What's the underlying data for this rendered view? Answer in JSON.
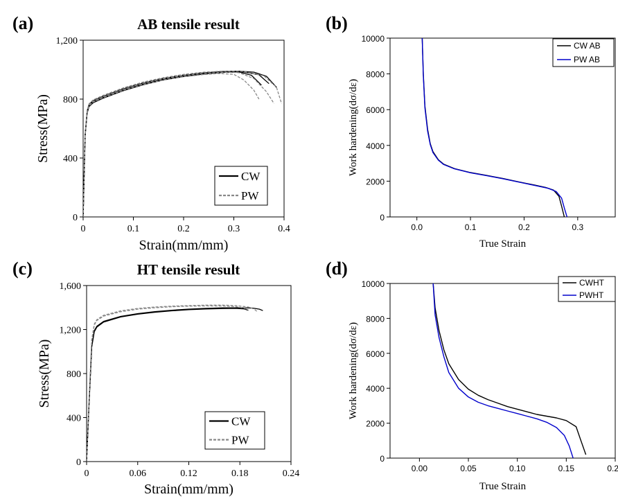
{
  "panel_labels": [
    "(a)",
    "(b)",
    "(c)",
    "(d)"
  ],
  "chart_data": [
    {
      "id": "a",
      "type": "line",
      "title": "AB tensile result",
      "xlabel": "Strain(mm/mm)",
      "ylabel": "Stress(MPa)",
      "xlim": [
        0,
        0.4
      ],
      "ylim": [
        0,
        1200
      ],
      "xticks": [
        0,
        0.1,
        0.2,
        0.3,
        0.4
      ],
      "xtick_labels": [
        "0",
        "0.1",
        "0.2",
        "0.3",
        "0.4"
      ],
      "yticks": [
        0,
        400,
        800,
        1200
      ],
      "ytick_labels": [
        "0",
        "400",
        "800",
        "1,200"
      ],
      "legend_position": "bottom-right",
      "series": [
        {
          "name": "CW",
          "color": "#000000",
          "dash": "solid",
          "label_in_legend": true,
          "x": [
            0,
            0.004,
            0.008,
            0.012,
            0.02,
            0.04,
            0.08,
            0.12,
            0.16,
            0.2,
            0.24,
            0.28,
            0.31,
            0.34,
            0.365,
            0.385
          ],
          "y": [
            0,
            560,
            720,
            765,
            790,
            820,
            870,
            910,
            940,
            962,
            978,
            988,
            990,
            983,
            955,
            880
          ]
        },
        {
          "color": "#000000",
          "dash": "solid",
          "x": [
            0,
            0.004,
            0.008,
            0.012,
            0.02,
            0.04,
            0.08,
            0.12,
            0.16,
            0.2,
            0.24,
            0.28,
            0.32,
            0.35,
            0.37
          ],
          "y": [
            0,
            555,
            712,
            758,
            782,
            812,
            862,
            903,
            935,
            958,
            974,
            984,
            985,
            965,
            905
          ]
        },
        {
          "color": "#000000",
          "dash": "solid",
          "x": [
            0,
            0.004,
            0.008,
            0.012,
            0.02,
            0.04,
            0.08,
            0.12,
            0.16,
            0.2,
            0.24,
            0.28,
            0.31,
            0.335,
            0.355
          ],
          "y": [
            0,
            550,
            705,
            750,
            775,
            806,
            857,
            898,
            930,
            953,
            970,
            982,
            985,
            962,
            895
          ]
        },
        {
          "name": "PW",
          "color": "#888888",
          "dash": "dashed",
          "label_in_legend": true,
          "x": [
            0,
            0.004,
            0.008,
            0.012,
            0.02,
            0.04,
            0.08,
            0.12,
            0.16,
            0.2,
            0.24,
            0.28,
            0.32,
            0.36,
            0.385,
            0.395
          ],
          "y": [
            0,
            565,
            725,
            770,
            795,
            826,
            876,
            916,
            946,
            968,
            983,
            990,
            988,
            958,
            880,
            770
          ]
        },
        {
          "color": "#888888",
          "dash": "dashed",
          "x": [
            0,
            0.004,
            0.008,
            0.012,
            0.02,
            0.04,
            0.08,
            0.12,
            0.16,
            0.2,
            0.24,
            0.28,
            0.31,
            0.34,
            0.365,
            0.38
          ],
          "y": [
            0,
            558,
            718,
            762,
            786,
            817,
            867,
            908,
            938,
            960,
            975,
            983,
            980,
            940,
            850,
            770
          ]
        },
        {
          "color": "#888888",
          "dash": "dashed",
          "x": [
            0,
            0.004,
            0.008,
            0.012,
            0.02,
            0.04,
            0.08,
            0.12,
            0.16,
            0.2,
            0.24,
            0.27,
            0.3,
            0.32,
            0.34,
            0.35
          ],
          "y": [
            0,
            552,
            710,
            755,
            780,
            810,
            860,
            900,
            930,
            952,
            967,
            974,
            968,
            930,
            860,
            800
          ]
        }
      ]
    },
    {
      "id": "b",
      "type": "line",
      "title": "",
      "xlabel": "True Strain",
      "ylabel": "Work hardening(dσ/dε)",
      "xlim": [
        -0.05,
        0.37
      ],
      "ylim": [
        0,
        10000
      ],
      "xticks": [
        0.0,
        0.1,
        0.2,
        0.3
      ],
      "xtick_labels": [
        "0.0",
        "0.1",
        "0.2",
        "0.3"
      ],
      "yticks": [
        0,
        2000,
        4000,
        6000,
        8000,
        10000
      ],
      "ytick_labels": [
        "0",
        "2000",
        "4000",
        "6000",
        "8000",
        "10000"
      ],
      "legend_position": "top-right",
      "series": [
        {
          "name": "CW AB",
          "color": "#000000",
          "x": [
            0.01,
            0.012,
            0.015,
            0.02,
            0.025,
            0.03,
            0.04,
            0.05,
            0.07,
            0.1,
            0.13,
            0.16,
            0.19,
            0.22,
            0.24,
            0.255,
            0.265,
            0.27,
            0.275
          ],
          "y": [
            10000,
            8000,
            6200,
            4900,
            4100,
            3650,
            3200,
            2950,
            2700,
            2480,
            2320,
            2150,
            1960,
            1780,
            1650,
            1500,
            1150,
            600,
            0
          ]
        },
        {
          "name": "PW AB",
          "color": "#0000cc",
          "x": [
            0.01,
            0.012,
            0.015,
            0.02,
            0.025,
            0.03,
            0.04,
            0.05,
            0.07,
            0.1,
            0.13,
            0.16,
            0.19,
            0.22,
            0.245,
            0.26,
            0.27,
            0.275,
            0.28
          ],
          "y": [
            10000,
            7900,
            6100,
            4800,
            4050,
            3600,
            3180,
            2930,
            2690,
            2470,
            2310,
            2140,
            1950,
            1760,
            1600,
            1420,
            1050,
            500,
            0
          ]
        }
      ]
    },
    {
      "id": "c",
      "type": "line",
      "title": "HT tensile result",
      "xlabel": "Strain(mm/mm)",
      "ylabel": "Stress(MPa)",
      "xlim": [
        0,
        0.24
      ],
      "ylim": [
        0,
        1600
      ],
      "xticks": [
        0,
        0.06,
        0.12,
        0.18,
        0.24
      ],
      "xtick_labels": [
        "0",
        "0.06",
        "0.12",
        "0.18",
        "0.24"
      ],
      "yticks": [
        0,
        400,
        800,
        1200,
        1600
      ],
      "ytick_labels": [
        "0",
        "400",
        "800",
        "1,200",
        "1,600"
      ],
      "legend_position": "bottom-right",
      "series": [
        {
          "name": "CW",
          "color": "#000000",
          "dash": "solid",
          "label_in_legend": true,
          "x": [
            0,
            0.003,
            0.006,
            0.009,
            0.012,
            0.02,
            0.04,
            0.06,
            0.08,
            0.1,
            0.12,
            0.14,
            0.16,
            0.18,
            0.195,
            0.203,
            0.207
          ],
          "y": [
            0,
            550,
            1050,
            1190,
            1230,
            1275,
            1320,
            1345,
            1363,
            1376,
            1386,
            1393,
            1397,
            1398,
            1395,
            1385,
            1372
          ]
        },
        {
          "color": "#000000",
          "dash": "solid",
          "x": [
            0,
            0.003,
            0.006,
            0.009,
            0.012,
            0.02,
            0.04,
            0.06,
            0.08,
            0.1,
            0.12,
            0.14,
            0.16,
            0.175,
            0.185,
            0.19
          ],
          "y": [
            0,
            545,
            1040,
            1180,
            1222,
            1268,
            1314,
            1339,
            1357,
            1370,
            1380,
            1387,
            1391,
            1392,
            1388,
            1375
          ]
        },
        {
          "name": "PW",
          "color": "#888888",
          "dash": "dashed",
          "label_in_legend": true,
          "x": [
            0,
            0.003,
            0.006,
            0.009,
            0.012,
            0.02,
            0.04,
            0.06,
            0.08,
            0.1,
            0.12,
            0.14,
            0.16,
            0.175,
            0.19,
            0.197,
            0.2
          ],
          "y": [
            0,
            580,
            1110,
            1250,
            1290,
            1330,
            1370,
            1392,
            1405,
            1413,
            1418,
            1422,
            1422,
            1418,
            1405,
            1385,
            1365
          ]
        },
        {
          "color": "#888888",
          "dash": "dashed",
          "x": [
            0,
            0.003,
            0.006,
            0.009,
            0.012,
            0.02,
            0.04,
            0.06,
            0.08,
            0.1,
            0.12,
            0.14,
            0.16,
            0.175,
            0.185,
            0.19
          ],
          "y": [
            0,
            575,
            1100,
            1240,
            1282,
            1322,
            1362,
            1385,
            1398,
            1407,
            1412,
            1415,
            1414,
            1408,
            1395,
            1378
          ]
        }
      ]
    },
    {
      "id": "d",
      "type": "line",
      "title": "",
      "xlabel": "True Strain",
      "ylabel": "Work hardening(dσ/dε)",
      "xlim": [
        -0.03,
        0.2
      ],
      "ylim": [
        0,
        10000
      ],
      "xticks": [
        0.0,
        0.05,
        0.1,
        0.15,
        0.2
      ],
      "xtick_labels": [
        "0.00",
        "0.05",
        "0.10",
        "0.15",
        "0.20"
      ],
      "yticks": [
        0,
        2000,
        4000,
        6000,
        8000,
        10000
      ],
      "ytick_labels": [
        "0",
        "2000",
        "4000",
        "6000",
        "8000",
        "10000"
      ],
      "legend_position": "top-right",
      "series": [
        {
          "name": "CWHT",
          "color": "#000000",
          "x": [
            0.014,
            0.016,
            0.02,
            0.025,
            0.03,
            0.04,
            0.05,
            0.06,
            0.07,
            0.08,
            0.09,
            0.1,
            0.11,
            0.12,
            0.13,
            0.14,
            0.15,
            0.16,
            0.165,
            0.17
          ],
          "y": [
            10000,
            8600,
            7300,
            6200,
            5400,
            4500,
            3950,
            3600,
            3350,
            3150,
            2950,
            2800,
            2650,
            2500,
            2400,
            2300,
            2150,
            1800,
            1000,
            200
          ]
        },
        {
          "name": "PWHT",
          "color": "#0000cc",
          "x": [
            0.014,
            0.016,
            0.02,
            0.025,
            0.03,
            0.04,
            0.05,
            0.06,
            0.07,
            0.08,
            0.09,
            0.1,
            0.11,
            0.12,
            0.13,
            0.14,
            0.148,
            0.153,
            0.157
          ],
          "y": [
            10000,
            8200,
            6900,
            5800,
            4900,
            4000,
            3500,
            3200,
            3000,
            2850,
            2700,
            2550,
            2400,
            2250,
            2050,
            1750,
            1300,
            700,
            0
          ]
        }
      ]
    }
  ]
}
